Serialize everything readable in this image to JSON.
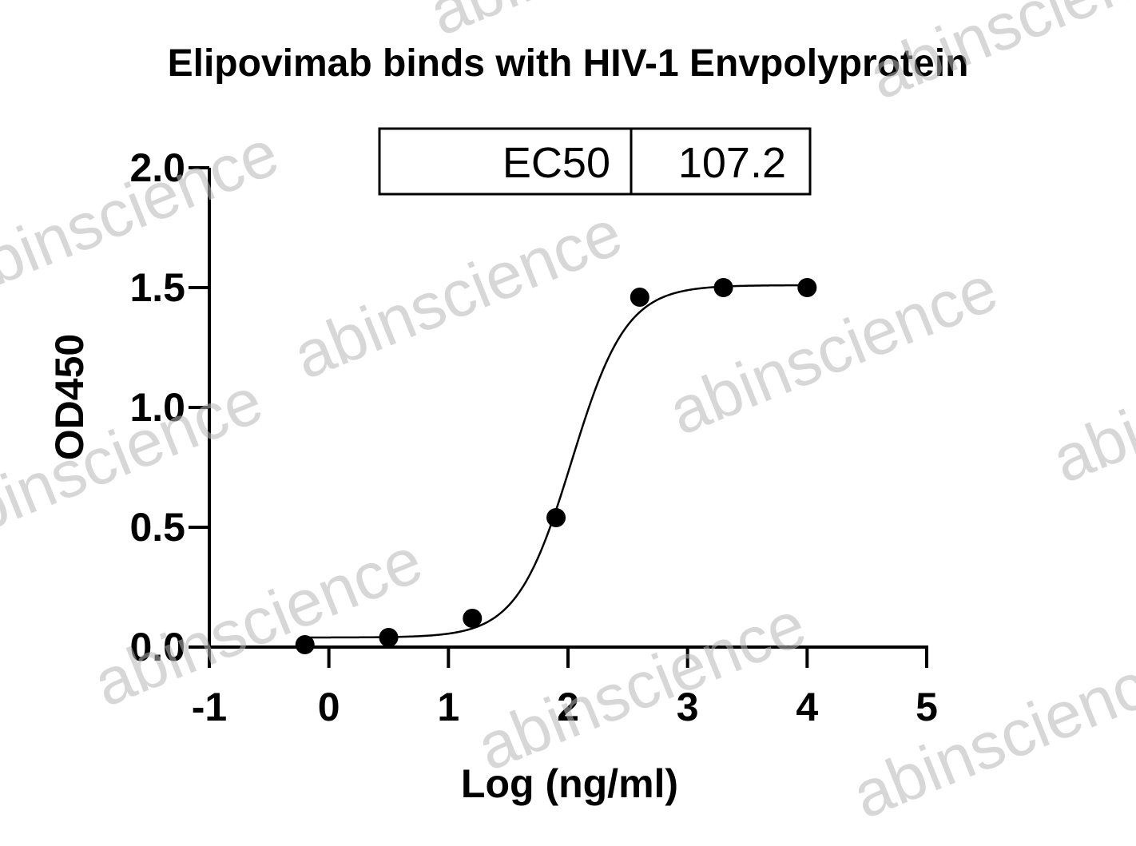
{
  "chart_data": {
    "type": "scatter",
    "title": "Elipovimab binds with HIV-1 Envpolyprotein",
    "xlabel": "Log (ng/ml)",
    "ylabel": "OD450",
    "xlim": [
      -1,
      5
    ],
    "ylim": [
      0,
      2.0
    ],
    "x_ticks": [
      "-1",
      "0",
      "1",
      "2",
      "3",
      "4",
      "5"
    ],
    "y_ticks": [
      "0.0",
      "0.5",
      "1.0",
      "1.5",
      "2.0"
    ],
    "points": {
      "x": [
        -0.2,
        0.5,
        1.2,
        1.9,
        2.6,
        3.3,
        4.0
      ],
      "y": [
        0.01,
        0.04,
        0.12,
        0.54,
        1.46,
        1.5,
        1.5
      ]
    },
    "fit_curve": {
      "type": "4PL",
      "bottom": 0.04,
      "top": 1.51,
      "logEC50": 2.03,
      "hill": 1.9,
      "x_range": [
        -0.2,
        4.0
      ]
    },
    "ec50_table": {
      "label": "EC50",
      "value": "107.2"
    },
    "watermark": "abinscience",
    "colors": {
      "ink": "#000000",
      "watermark": "#b8b8b8"
    }
  }
}
